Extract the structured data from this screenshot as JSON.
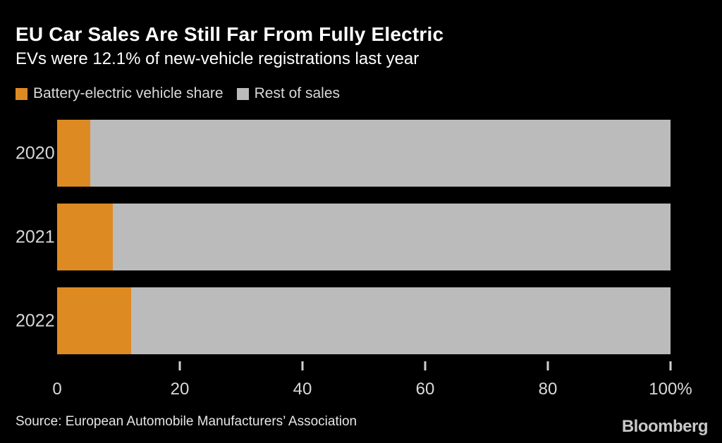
{
  "header": {
    "title": "EU Car Sales Are Still Far From Fully Electric",
    "subtitle": "EVs were 12.1% of new-vehicle registrations last year"
  },
  "legend": [
    {
      "label": "Battery-electric vehicle share",
      "color": "#DE8A22"
    },
    {
      "label": "Rest of sales",
      "color": "#BBBBBB"
    }
  ],
  "chart_data": {
    "type": "bar",
    "orientation": "horizontal",
    "stacked": true,
    "title": "EU Car Sales Are Still Far From Fully Electric",
    "subtitle": "EVs were 12.1% of new-vehicle registrations last year",
    "categories": [
      "2020",
      "2021",
      "2022"
    ],
    "series": [
      {
        "name": "Battery-electric vehicle share",
        "color": "#DE8A22",
        "values": [
          5.4,
          9.1,
          12.1
        ]
      },
      {
        "name": "Rest of sales",
        "color": "#BBBBBB",
        "values": [
          94.6,
          90.9,
          87.9
        ]
      }
    ],
    "xlabel": "",
    "ylabel": "",
    "xlim": [
      0,
      100
    ],
    "x_ticks": [
      {
        "value": 0,
        "label": "0",
        "mark": false
      },
      {
        "value": 20,
        "label": "20",
        "mark": true
      },
      {
        "value": 40,
        "label": "40",
        "mark": true
      },
      {
        "value": 60,
        "label": "60",
        "mark": true
      },
      {
        "value": 80,
        "label": "80",
        "mark": true
      },
      {
        "value": 100,
        "label": "100%",
        "mark": true
      }
    ],
    "grid": false,
    "legend_position": "top"
  },
  "footer": {
    "source": "Source: European Automobile Manufacturers’ Association",
    "brand": "Bloomberg"
  },
  "colors": {
    "background": "#000000",
    "title_text": "#FFFFFF",
    "axis_text": "#D9D9D9",
    "bev_orange": "#DE8A22",
    "rest_gray": "#BBBBBB"
  }
}
